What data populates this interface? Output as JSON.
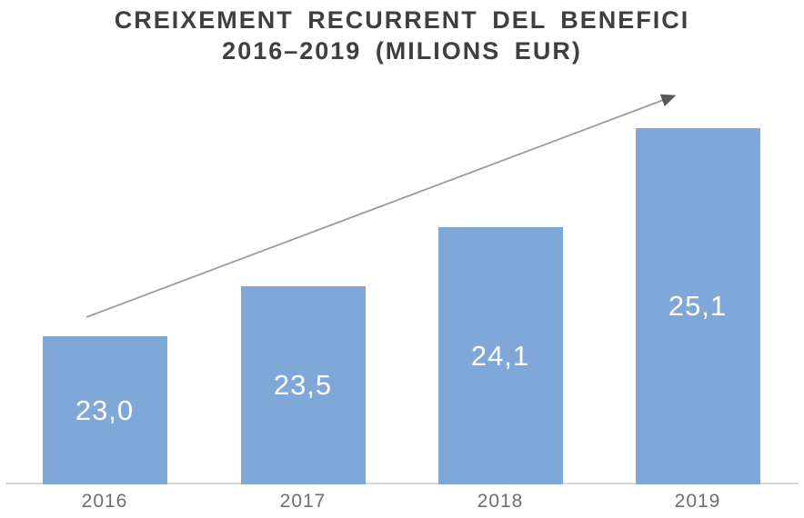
{
  "chart_data": {
    "type": "bar",
    "title": "CREIXEMENT RECURRENT DEL BENEFICI 2016–2019 (MILIONS EUR)",
    "title_lines": [
      "CREIXEMENT RECURRENT DEL BENEFICI",
      "2016–2019 (MILIONS EUR)"
    ],
    "categories": [
      "2016",
      "2017",
      "2018",
      "2019"
    ],
    "values": [
      23.0,
      23.5,
      24.1,
      25.1
    ],
    "value_labels": [
      "23,0",
      "23,5",
      "24,1",
      "25,1"
    ],
    "unit": "MILIONS EUR",
    "xlabel": "",
    "ylabel": "",
    "ylim": [
      21.5,
      25.1
    ],
    "grid": false,
    "legend": false,
    "value_label_position": "center-inside-bar",
    "annotations": [
      {
        "type": "arrow",
        "description": "straight upward trend arrow from above the 2016 bar to above the 2019 bar"
      }
    ],
    "colors": {
      "bar": "#7FA8D8",
      "value_label": "#FFFFFF",
      "title": "#3F3F3F",
      "tick_label": "#6E6E6E",
      "axis_line": "#D9D9D9",
      "arrow_line": "#9A9A9A",
      "arrow_head": "#595959"
    }
  }
}
